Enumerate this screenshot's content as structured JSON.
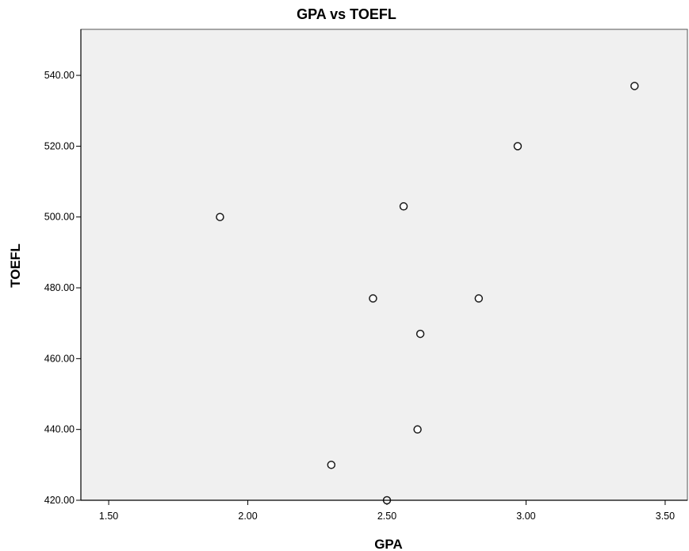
{
  "chart_data": {
    "type": "scatter",
    "title": "GPA vs TOEFL",
    "xlabel": "GPA",
    "ylabel": "TOEFL",
    "xlim": [
      1.4,
      3.58
    ],
    "ylim": [
      420,
      553
    ],
    "xticks": [
      1.5,
      2.0,
      2.5,
      3.0,
      3.5
    ],
    "yticks": [
      420,
      440,
      460,
      480,
      500,
      520,
      540
    ],
    "xtick_labels": [
      "1.50",
      "2.00",
      "2.50",
      "3.00",
      "3.50"
    ],
    "ytick_labels": [
      "420.00",
      "440.00",
      "460.00",
      "480.00",
      "500.00",
      "520.00",
      "540.00"
    ],
    "grid": false,
    "points": [
      {
        "x": 1.9,
        "y": 500
      },
      {
        "x": 2.3,
        "y": 430
      },
      {
        "x": 2.45,
        "y": 477
      },
      {
        "x": 2.5,
        "y": 420
      },
      {
        "x": 2.56,
        "y": 503
      },
      {
        "x": 2.61,
        "y": 440
      },
      {
        "x": 2.62,
        "y": 467
      },
      {
        "x": 2.83,
        "y": 477
      },
      {
        "x": 2.97,
        "y": 520
      },
      {
        "x": 3.39,
        "y": 537
      }
    ],
    "colors": {
      "plot_background": "#f0f0f0",
      "marker_stroke": "#1a1a1a",
      "marker_fill": "#ffffff",
      "axis": "#000000"
    }
  }
}
